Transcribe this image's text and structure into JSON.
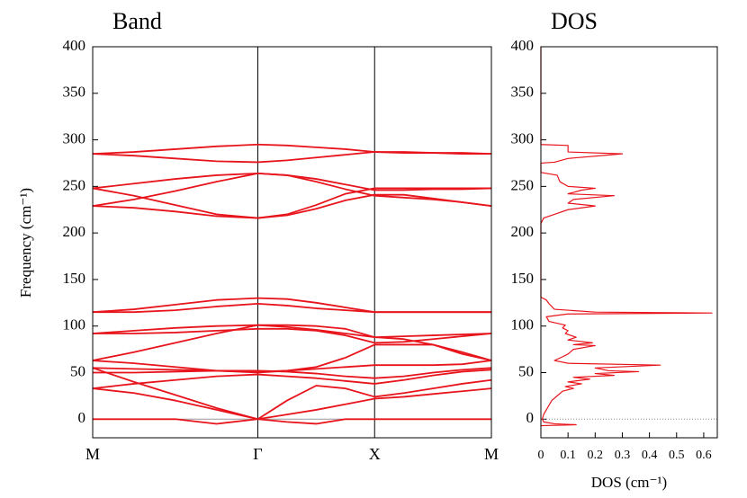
{
  "chart_data": [
    {
      "type": "line",
      "title": "Band",
      "ylabel": "Frequency (cm⁻¹)",
      "xlim": [
        0,
        1.707
      ],
      "ylim": [
        -20,
        400
      ],
      "xticks": [
        {
          "value": 0,
          "label": "M"
        },
        {
          "value": 0.707,
          "label": "Γ"
        },
        {
          "value": 1.207,
          "label": "X"
        },
        {
          "value": 1.707,
          "label": "M"
        }
      ],
      "yticks": [
        0,
        50,
        100,
        150,
        200,
        250,
        300,
        350,
        400
      ],
      "grid": true,
      "zero_line": true,
      "x": [
        0,
        0.177,
        0.354,
        0.53,
        0.707,
        0.832,
        0.957,
        1.082,
        1.207,
        1.332,
        1.457,
        1.582,
        1.707
      ],
      "series": [
        {
          "color": "#e8141c",
          "values": [
            0,
            0,
            0,
            -5,
            0,
            -3,
            -5,
            0,
            0,
            0,
            0,
            0,
            0
          ]
        },
        {
          "color": "#e8141c",
          "values": [
            33,
            28,
            20,
            10,
            0,
            5,
            10,
            16,
            22,
            24,
            27,
            30,
            33
          ]
        },
        {
          "color": "#e8141c",
          "values": [
            55,
            40,
            26,
            12,
            0,
            20,
            36,
            33,
            24,
            28,
            33,
            38,
            42
          ]
        },
        {
          "color": "#e8141c",
          "values": [
            33,
            38,
            42,
            46,
            48,
            46,
            44,
            41,
            38,
            42,
            47,
            51,
            53
          ]
        },
        {
          "color": "#e8141c",
          "values": [
            50,
            50,
            51,
            52,
            52,
            51,
            49,
            46,
            44,
            46,
            50,
            53,
            55
          ]
        },
        {
          "color": "#e8141c",
          "values": [
            55,
            54,
            53,
            52,
            51,
            52,
            54,
            56,
            58,
            58,
            58,
            59,
            63
          ]
        },
        {
          "color": "#e8141c",
          "values": [
            63,
            60,
            56,
            52,
            50,
            52,
            56,
            66,
            80,
            80,
            80,
            72,
            63
          ]
        },
        {
          "color": "#e8141c",
          "values": [
            63,
            72,
            82,
            92,
            101,
            99,
            96,
            92,
            88,
            86,
            80,
            70,
            63
          ]
        },
        {
          "color": "#e8141c",
          "values": [
            92,
            92,
            93,
            95,
            97,
            97,
            95,
            90,
            82,
            83,
            86,
            89,
            92
          ]
        },
        {
          "color": "#e8141c",
          "values": [
            92,
            95,
            98,
            100,
            101,
            101,
            100,
            97,
            88,
            89,
            90,
            91,
            92
          ]
        },
        {
          "color": "#e8141c",
          "values": [
            115,
            115,
            117,
            121,
            124,
            122,
            119,
            117,
            115,
            115,
            115,
            115,
            115
          ]
        },
        {
          "color": "#e8141c",
          "values": [
            115,
            118,
            123,
            128,
            130,
            129,
            125,
            120,
            115,
            115,
            115,
            115,
            115
          ]
        },
        {
          "color": "#e8141c",
          "values": [
            229,
            227,
            223,
            218,
            216,
            219,
            226,
            235,
            241,
            241,
            237,
            233,
            229
          ]
        },
        {
          "color": "#e8141c",
          "values": [
            229,
            236,
            245,
            255,
            264,
            262,
            255,
            247,
            240,
            238,
            236,
            233,
            229
          ]
        },
        {
          "color": "#e8141c",
          "values": [
            248,
            240,
            230,
            220,
            216,
            220,
            230,
            242,
            248,
            248,
            248,
            248,
            248
          ]
        },
        {
          "color": "#e8141c",
          "values": [
            248,
            253,
            258,
            262,
            264,
            262,
            258,
            252,
            246,
            246,
            247,
            247,
            248
          ]
        },
        {
          "color": "#e8141c",
          "values": [
            285,
            283,
            280,
            277,
            276,
            278,
            281,
            284,
            287,
            287,
            286,
            286,
            285
          ]
        },
        {
          "color": "#e8141c",
          "values": [
            285,
            287,
            290,
            293,
            295,
            294,
            292,
            290,
            287,
            286,
            286,
            285,
            285
          ]
        }
      ]
    },
    {
      "type": "line",
      "title": "DOS",
      "xlabel": "DOS (cm⁻¹)",
      "orientation": "horizontal",
      "xlim": [
        0,
        0.65
      ],
      "ylim": [
        -20,
        400
      ],
      "xticks": [
        0,
        0.1,
        0.2,
        0.3,
        0.4,
        0.5,
        0.6
      ],
      "yticks": [
        0,
        50,
        100,
        150,
        200,
        250,
        300,
        350,
        400
      ],
      "zero_line": true,
      "color": "#e8141c",
      "x": [
        -7,
        -6,
        -5,
        -3,
        0,
        5,
        10,
        15,
        20,
        25,
        30,
        33,
        35,
        38,
        40,
        43,
        45,
        47,
        49,
        51,
        52,
        55,
        58,
        60,
        63,
        67,
        70,
        75,
        79,
        80,
        82,
        85,
        88,
        92,
        95,
        98,
        101,
        105,
        110,
        113,
        114,
        115,
        118,
        124,
        128,
        131,
        210,
        216,
        220,
        225,
        229,
        232,
        236,
        240,
        242,
        246,
        248,
        250,
        255,
        262,
        265,
        275,
        276,
        280,
        285,
        287,
        290,
        294,
        295,
        400
      ],
      "values": [
        0,
        0.13,
        0.05,
        0.01,
        0.005,
        0.01,
        0.02,
        0.03,
        0.04,
        0.06,
        0.08,
        0.12,
        0.09,
        0.15,
        0.1,
        0.18,
        0.12,
        0.27,
        0.2,
        0.36,
        0.25,
        0.2,
        0.44,
        0.1,
        0.05,
        0.08,
        0.1,
        0.12,
        0.2,
        0.12,
        0.19,
        0.1,
        0.13,
        0.09,
        0.1,
        0.08,
        0.09,
        0.03,
        0.02,
        0.1,
        0.63,
        0.2,
        0.05,
        0.03,
        0.02,
        0,
        0,
        0.01,
        0.05,
        0.1,
        0.2,
        0.1,
        0.12,
        0.27,
        0.1,
        0.15,
        0.2,
        0.1,
        0.07,
        0.06,
        0,
        0,
        0.05,
        0.1,
        0.3,
        0.1,
        0.1,
        0.1,
        0,
        0
      ]
    }
  ]
}
